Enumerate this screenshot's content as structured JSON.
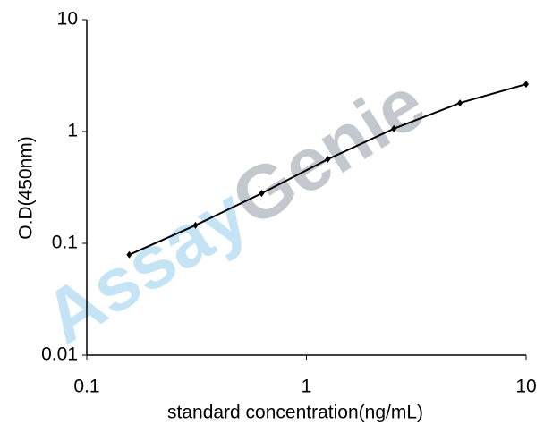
{
  "chart_data": {
    "type": "line",
    "x_label": "standard concentration(ng/mL)",
    "y_label": "O.D(450nm)",
    "watermark": [
      "Assay",
      "Genie"
    ],
    "x": [
      0.156,
      0.3125,
      0.625,
      1.25,
      2.5,
      5,
      10
    ],
    "series": [
      {
        "color": "#000000",
        "values": [
          0.079,
          0.145,
          0.28,
          0.565,
          1.06,
          1.8,
          2.65
        ]
      }
    ],
    "xscale": "log",
    "yscale": "log",
    "xlim": [
      0.1,
      10
    ],
    "ylim": [
      0.01,
      10
    ],
    "xticks": [
      0.1,
      1,
      10
    ],
    "yticks": [
      0.01,
      0.1,
      1,
      10
    ],
    "grid": false
  }
}
